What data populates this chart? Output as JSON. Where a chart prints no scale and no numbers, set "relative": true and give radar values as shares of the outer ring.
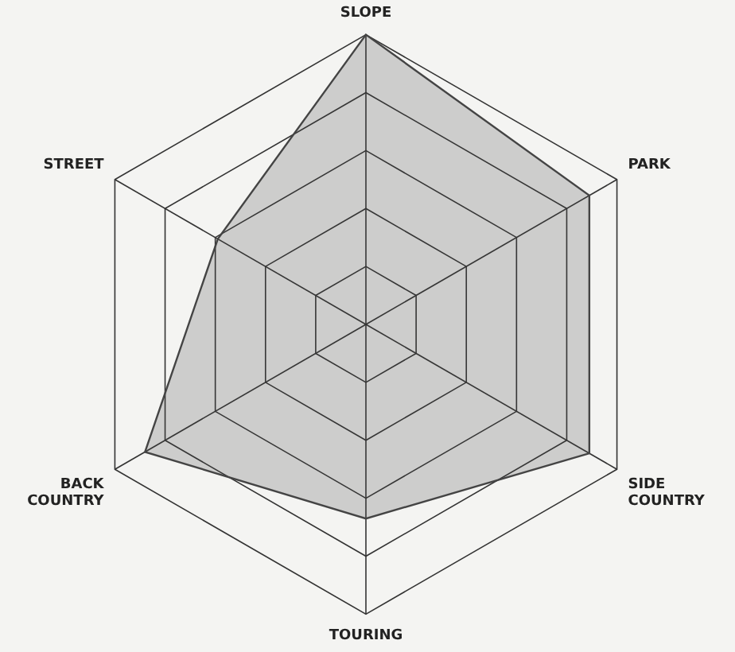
{
  "chart_data": {
    "type": "radar",
    "relative": true,
    "categories": [
      "SLOPE",
      "PARK",
      "SIDE COUNTRY",
      "TOURING",
      "BACK COUNTRY",
      "STREET"
    ],
    "series": [
      {
        "color": "#444444",
        "values": [
          1.0,
          0.89,
          0.89,
          0.67,
          0.88,
          0.59
        ]
      }
    ],
    "marker": "none",
    "legend": false
  }
}
